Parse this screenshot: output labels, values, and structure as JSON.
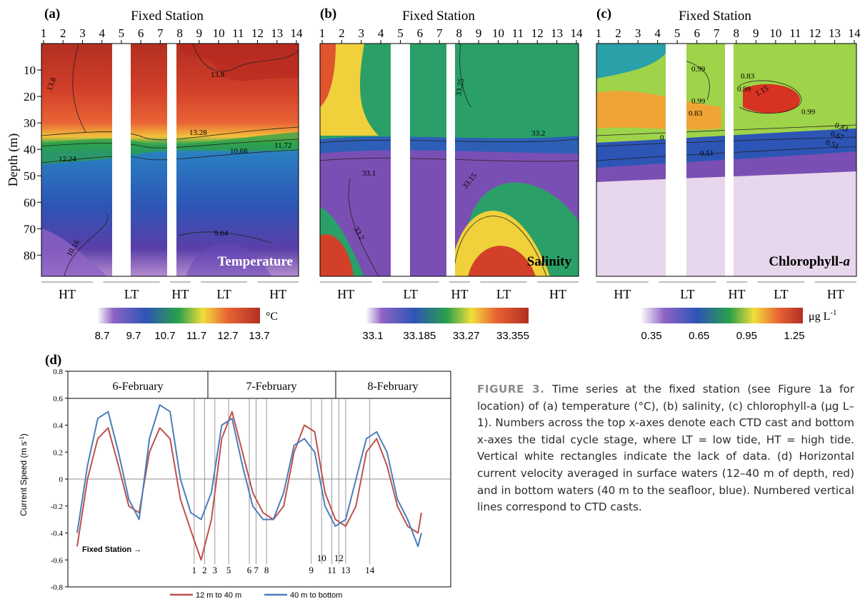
{
  "panels": [
    {
      "letter": "(a)",
      "top_title": "Fixed Station",
      "variable_label": "Temperature",
      "ylabel": "Depth (m)",
      "depth_ticks": [
        "10",
        "20",
        "30",
        "40",
        "50",
        "60",
        "70",
        "80"
      ],
      "contour_labels": [
        "13.8",
        "13.8",
        "13.28",
        "12.24",
        "10.68",
        "11.72",
        "10.16",
        "9.64"
      ],
      "colorbar": {
        "unit": "°C",
        "ticks": [
          "8.7",
          "9.7",
          "10.7",
          "11.7",
          "12.7",
          "13.7"
        ]
      }
    },
    {
      "letter": "(b)",
      "top_title": "Fixed Station",
      "variable_label": "Salinity",
      "contour_labels": [
        "33.25",
        "33.2",
        "33.1",
        "33.15",
        "33.2"
      ],
      "colorbar": {
        "unit": "",
        "ticks": [
          "33.1",
          "33.185",
          "33.27",
          "33.355"
        ]
      }
    },
    {
      "letter": "(c)",
      "top_title": "Fixed Station",
      "variable_label": "Chlorophyll-",
      "variable_label_italic": "a",
      "contour_labels": [
        "0.99",
        "0.83",
        "0.99",
        "1.15",
        "0.99",
        "0.83",
        "0.99",
        "0.83",
        "0.67",
        "0.51",
        "0",
        "0.51"
      ],
      "colorbar": {
        "unit": "μg L",
        "unit_sup": "-1",
        "ticks": [
          "0.35",
          "0.65",
          "0.95",
          "1.25"
        ]
      }
    }
  ],
  "cast_numbers": [
    "1",
    "2",
    "3",
    "4",
    "5",
    "6",
    "7",
    "8",
    "9",
    "10",
    "11",
    "12",
    "13",
    "14"
  ],
  "tide_stages": [
    "HT",
    "LT",
    "HT",
    "LT",
    "HT"
  ],
  "chart_d": {
    "letter": "(d)",
    "ylabel": "Current Speed (m s",
    "ylabel_sup": "-1",
    "ylabel_close": ")",
    "yticks": [
      "0.8",
      "0.6",
      "0.4",
      "0.2",
      "0",
      "-0.2",
      "-0.4",
      "-0.6",
      "-0.8"
    ],
    "dates": [
      "6-February",
      "7-February",
      "8-February"
    ],
    "fixed_station_label": "Fixed Station →",
    "cast_labels": [
      "1",
      "2",
      "3",
      "5",
      "6",
      "7",
      "8",
      "9",
      "10",
      "11",
      "12",
      "13",
      "14"
    ],
    "legend": [
      "12 m to 40 m",
      "40 m to bottom"
    ]
  },
  "caption": {
    "label": "FIGURE 3.",
    "text": "Time series at the fixed station (see Figure 1a for location) of (a) temperature (°C), (b) salinity, (c) chlorophyll-a (µg L–1). Numbers across the top x-axes denote each CTD cast and bottom x-axes the tidal cycle stage, where LT = low tide, HT = high tide. Vertical white rectangles indicate the lack of data. (d) Horizontal current velocity averaged in surface waters (12–40 m of depth, red) and in bottom waters (40 m to the seafloor, blue). Numbered vertical lines correspond to CTD casts."
  },
  "chart_data": [
    {
      "type": "heatmap",
      "title": "Temperature",
      "x_label": "Fixed Station",
      "x": [
        1,
        2,
        3,
        4,
        5,
        6,
        7,
        8,
        9,
        10,
        11,
        12,
        13,
        14
      ],
      "ylabel": "Depth (m)",
      "ylim": [
        0,
        88
      ],
      "colorbar_range": [
        8.7,
        13.7
      ],
      "unit": "°C",
      "missing_casts": [
        5,
        8
      ],
      "profile_depth": [
        5,
        15,
        25,
        35,
        40,
        45,
        55,
        65,
        75,
        85
      ],
      "profile_value": [
        13.9,
        13.8,
        13.6,
        13.2,
        12.2,
        10.9,
        10.5,
        10.2,
        9.9,
        9.4
      ]
    },
    {
      "type": "heatmap",
      "title": "Salinity",
      "x_label": "Fixed Station",
      "x": [
        1,
        2,
        3,
        4,
        5,
        6,
        7,
        8,
        9,
        10,
        11,
        12,
        13,
        14
      ],
      "ylim": [
        0,
        88
      ],
      "colorbar_range": [
        33.1,
        33.355
      ],
      "missing_casts": [
        5,
        8
      ],
      "profile_depth": [
        5,
        15,
        25,
        35,
        45,
        55,
        65,
        75,
        85
      ],
      "profile_value": [
        33.27,
        33.25,
        33.22,
        33.2,
        33.13,
        33.12,
        33.18,
        33.25,
        33.33
      ]
    },
    {
      "type": "heatmap",
      "title": "Chlorophyll-a",
      "x_label": "Fixed Station",
      "x": [
        1,
        2,
        3,
        4,
        5,
        6,
        7,
        8,
        9,
        10,
        11,
        12,
        13,
        14
      ],
      "ylim": [
        0,
        88
      ],
      "colorbar_range": [
        0.35,
        1.25
      ],
      "unit": "μg L-1",
      "missing_casts": [
        5,
        8
      ],
      "profile_depth": [
        5,
        15,
        25,
        35,
        45,
        55,
        65,
        75,
        85
      ],
      "profile_value": [
        0.95,
        1.05,
        1.1,
        0.85,
        0.45,
        0.4,
        0.38,
        0.37,
        0.36
      ]
    },
    {
      "type": "line",
      "ylim": [
        -0.8,
        0.8
      ],
      "xlim": [
        0,
        100
      ],
      "series": [
        {
          "name": "12 m to 40 m",
          "color": "#c0504d",
          "x": [
            0,
            3,
            6,
            9,
            12,
            15,
            18,
            21,
            24,
            27,
            30,
            33,
            36,
            39,
            42,
            45,
            48,
            51,
            54,
            57,
            60,
            63,
            66,
            69,
            72,
            75,
            78,
            81,
            84,
            87,
            90,
            93,
            96,
            99,
            100
          ],
          "y": [
            -0.5,
            0.0,
            0.3,
            0.38,
            0.1,
            -0.2,
            -0.25,
            0.2,
            0.38,
            0.3,
            -0.15,
            -0.38,
            -0.6,
            -0.3,
            0.3,
            0.5,
            0.2,
            -0.1,
            -0.25,
            -0.3,
            -0.2,
            0.2,
            0.4,
            0.35,
            -0.1,
            -0.3,
            -0.35,
            -0.2,
            0.2,
            0.3,
            0.1,
            -0.2,
            -0.35,
            -0.4,
            -0.25
          ]
        },
        {
          "name": "40 m to bottom",
          "color": "#4a7ebb",
          "x": [
            0,
            3,
            6,
            9,
            12,
            15,
            18,
            21,
            24,
            27,
            30,
            33,
            36,
            39,
            42,
            45,
            48,
            51,
            54,
            57,
            60,
            63,
            66,
            69,
            72,
            75,
            78,
            81,
            84,
            87,
            90,
            93,
            96,
            99,
            100
          ],
          "y": [
            -0.4,
            0.1,
            0.45,
            0.5,
            0.2,
            -0.15,
            -0.3,
            0.3,
            0.55,
            0.5,
            0.0,
            -0.25,
            -0.3,
            -0.1,
            0.4,
            0.45,
            0.1,
            -0.2,
            -0.3,
            -0.3,
            -0.1,
            0.25,
            0.3,
            0.2,
            -0.2,
            -0.35,
            -0.3,
            0.0,
            0.3,
            0.35,
            0.2,
            -0.15,
            -0.3,
            -0.5,
            -0.4
          ]
        }
      ],
      "cast_positions": [
        34,
        37,
        40,
        44,
        50,
        52,
        55,
        68,
        71,
        74,
        76,
        78,
        85
      ]
    }
  ]
}
